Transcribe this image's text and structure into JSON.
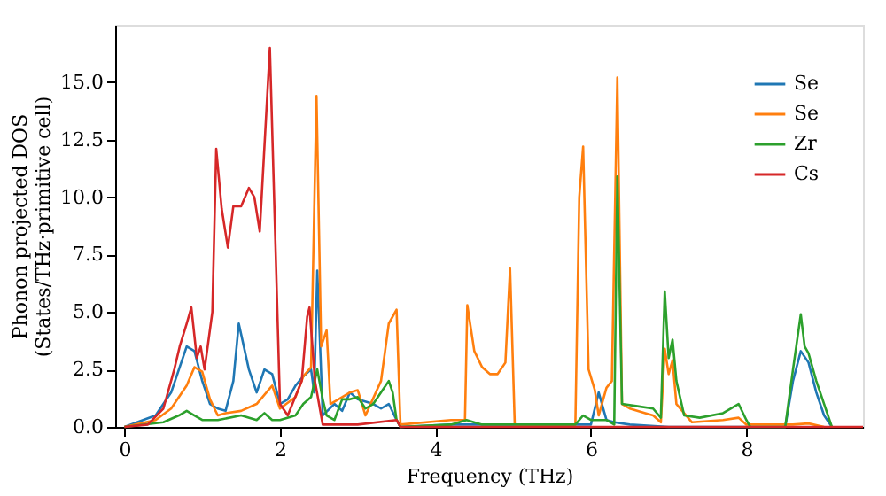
{
  "chart_data": {
    "type": "line",
    "xlabel": "Frequency (THz)",
    "ylabel": "Phonon projected DOS\n(States/THz·primitive cell)",
    "xlim": [
      -0.12,
      9.5
    ],
    "xticks": [
      0,
      2,
      4,
      6,
      8
    ],
    "ylim": [
      0,
      17.5
    ],
    "yticks": [
      {
        "value": 0,
        "label": "0.0"
      },
      {
        "value": 2.5,
        "label": "2.5"
      },
      {
        "value": 5,
        "label": "5.0"
      },
      {
        "value": 7.5,
        "label": "7.5"
      },
      {
        "value": 10,
        "label": "10.0"
      },
      {
        "value": 12.5,
        "label": "12.5"
      },
      {
        "value": 15,
        "label": "15.0"
      }
    ],
    "grid": false,
    "legend": "top right",
    "marker": "none",
    "line_style": "solid",
    "series": [
      {
        "name": "Se",
        "color": "#1f77b4",
        "x": [
          0,
          0.4,
          0.6,
          0.7,
          0.8,
          0.9,
          1.0,
          1.1,
          1.2,
          1.3,
          1.4,
          1.47,
          1.6,
          1.7,
          1.8,
          1.9,
          2.0,
          2.1,
          2.2,
          2.3,
          2.4,
          2.44,
          2.48,
          2.55,
          2.7,
          2.8,
          2.9,
          3.0,
          3.2,
          3.3,
          3.4,
          3.5,
          3.55,
          4.2,
          6.0,
          6.1,
          6.2,
          6.3,
          6.5,
          7.0,
          8.5,
          8.6,
          8.7,
          8.8,
          8.9,
          9.0,
          9.1
        ],
        "values": [
          0,
          0.5,
          1.5,
          2.5,
          3.5,
          3.3,
          2,
          1,
          0.8,
          0.7,
          2,
          4.5,
          2.5,
          1.5,
          2.5,
          2.3,
          1,
          1.2,
          1.8,
          2.2,
          2.5,
          1.5,
          6.8,
          0.5,
          1,
          0.7,
          1.5,
          1.2,
          1,
          0.8,
          1,
          0.3,
          0,
          0.1,
          0.1,
          1.5,
          0.3,
          0.2,
          0.1,
          0,
          0,
          2,
          3.3,
          2.8,
          1.5,
          0.5,
          0
        ]
      },
      {
        "name": "Se",
        "color": "#ff7f0e",
        "x": [
          0,
          0.4,
          0.6,
          0.8,
          0.9,
          1.0,
          1.1,
          1.2,
          1.3,
          1.5,
          1.7,
          1.9,
          2.0,
          2.2,
          2.3,
          2.4,
          2.47,
          2.53,
          2.6,
          2.65,
          2.8,
          2.9,
          3.0,
          3.1,
          3.3,
          3.4,
          3.5,
          3.55,
          4.2,
          4.38,
          4.41,
          4.5,
          4.6,
          4.7,
          4.8,
          4.9,
          4.96,
          5.02,
          5.8,
          5.85,
          5.9,
          5.97,
          6.05,
          6.1,
          6.2,
          6.27,
          6.34,
          6.4,
          6.5,
          6.7,
          6.8,
          6.9,
          6.95,
          7.0,
          7.05,
          7.1,
          7.3,
          7.7,
          7.9,
          8.0,
          8.6,
          8.8,
          9.0
        ],
        "values": [
          0,
          0.3,
          0.8,
          1.8,
          2.6,
          2.4,
          1.2,
          0.5,
          0.6,
          0.7,
          1,
          1.8,
          0.8,
          1.3,
          2.2,
          2.6,
          14.4,
          3.5,
          4.2,
          1,
          1.3,
          1.5,
          1.6,
          0.5,
          2,
          4.5,
          5.1,
          0.1,
          0.3,
          0.3,
          5.3,
          3.3,
          2.6,
          2.3,
          2.3,
          2.8,
          6.9,
          0.1,
          0.1,
          10,
          12.2,
          2.5,
          1.6,
          0.5,
          1.7,
          2,
          15.2,
          1,
          0.8,
          0.6,
          0.5,
          0.2,
          3.4,
          2.3,
          2.9,
          1,
          0.2,
          0.3,
          0.4,
          0.1,
          0.1,
          0.15,
          0
        ]
      },
      {
        "name": "Zr",
        "color": "#2ca02c",
        "x": [
          0,
          0.5,
          0.7,
          0.8,
          0.9,
          1.0,
          1.2,
          1.5,
          1.7,
          1.8,
          1.9,
          2.0,
          2.2,
          2.3,
          2.4,
          2.48,
          2.55,
          2.6,
          2.7,
          2.8,
          2.9,
          3.0,
          3.1,
          3.2,
          3.3,
          3.4,
          3.45,
          3.5,
          3.55,
          4.2,
          4.4,
          4.6,
          5.8,
          5.9,
          6.0,
          6.2,
          6.3,
          6.34,
          6.4,
          6.6,
          6.8,
          6.9,
          6.95,
          7.0,
          7.05,
          7.1,
          7.2,
          7.4,
          7.7,
          7.9,
          8.0,
          8.05,
          8.5,
          8.6,
          8.7,
          8.75,
          8.8,
          8.9,
          9.0,
          9.1
        ],
        "values": [
          0,
          0.2,
          0.5,
          0.7,
          0.5,
          0.3,
          0.3,
          0.5,
          0.3,
          0.6,
          0.3,
          0.3,
          0.5,
          1,
          1.3,
          2.5,
          1.2,
          0.5,
          0.3,
          1.2,
          1.2,
          1.3,
          0.8,
          1,
          1.5,
          2,
          1.5,
          0.3,
          0,
          0.1,
          0.3,
          0.1,
          0.1,
          0.5,
          0.3,
          0.3,
          0.1,
          10.9,
          1,
          0.9,
          0.8,
          0.4,
          5.9,
          3,
          3.8,
          2,
          0.5,
          0.4,
          0.6,
          1,
          0.3,
          0,
          0,
          2.5,
          4.9,
          3.5,
          3.2,
          2,
          1,
          0
        ]
      },
      {
        "name": "Cs",
        "color": "#d62728",
        "x": [
          0,
          0.3,
          0.5,
          0.64,
          0.71,
          0.8,
          0.86,
          0.93,
          0.98,
          1.03,
          1.13,
          1.18,
          1.25,
          1.33,
          1.4,
          1.5,
          1.6,
          1.67,
          1.74,
          1.87,
          2.0,
          2.1,
          2.28,
          2.35,
          2.38,
          2.45,
          2.55,
          3.0,
          3.5,
          3.55,
          9.5
        ],
        "values": [
          0,
          0.1,
          0.8,
          2.5,
          3.5,
          4.5,
          5.2,
          3,
          3.5,
          2.5,
          5,
          12.1,
          9.5,
          7.8,
          9.6,
          9.6,
          10.4,
          10,
          8.5,
          16.5,
          1,
          0.5,
          2,
          4.8,
          5.2,
          2,
          0.1,
          0.1,
          0.3,
          0,
          0
        ]
      }
    ]
  }
}
